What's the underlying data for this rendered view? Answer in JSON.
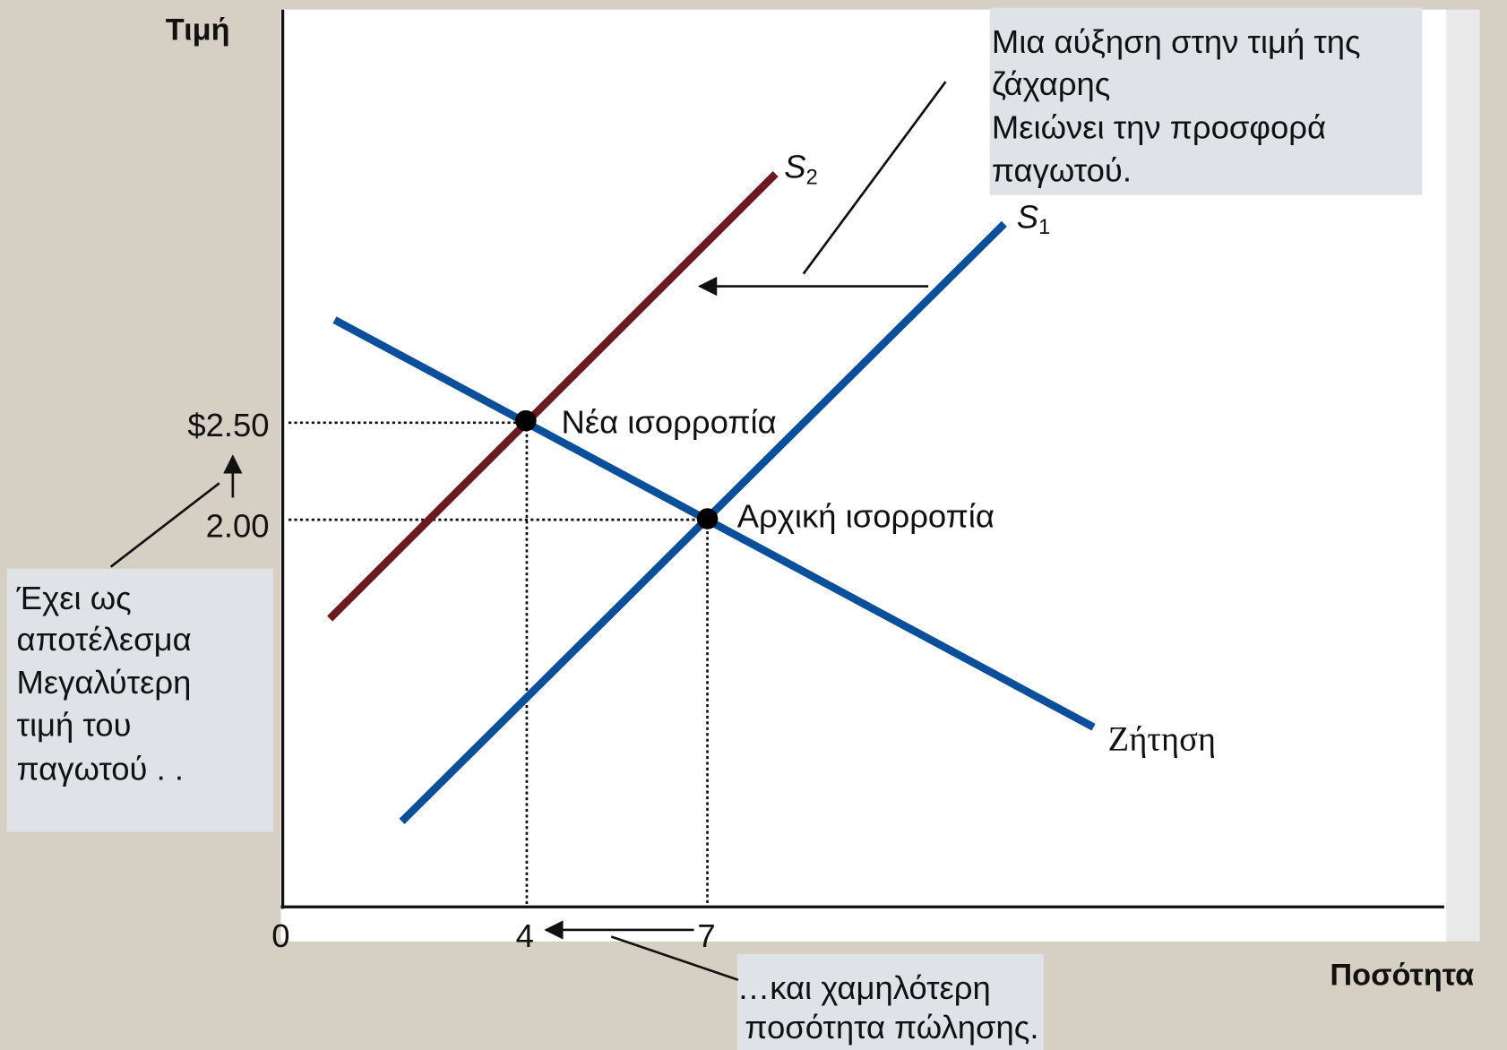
{
  "axes": {
    "y_label": "Τιμή",
    "x_label": "Ποσότητα",
    "origin": "0"
  },
  "price_ticks": [
    "$2.50",
    "2.00"
  ],
  "quantity_ticks": [
    "4",
    "7"
  ],
  "curves": {
    "supply_2": {
      "name": "S",
      "subscript": "2"
    },
    "supply_1": {
      "name": "S",
      "subscript": "1"
    },
    "demand": "Ζήτηση"
  },
  "equilibria": {
    "new": "Νέα ισορροπία",
    "initial": "Αρχική ισορροπία"
  },
  "notes": {
    "top": [
      "Μια αύξηση στην τιμή της",
      "ζάχαρης",
      "Μειώνει την προσφορά",
      "παγωτού."
    ],
    "left": [
      "Έχει ως",
      "αποτέλεσμα",
      "Μεγαλύτερη",
      "τιμή του",
      "παγωτού . ."
    ],
    "bottom": [
      "…και χαμηλότερη",
      "ποσότητα πώλησης."
    ]
  }
}
